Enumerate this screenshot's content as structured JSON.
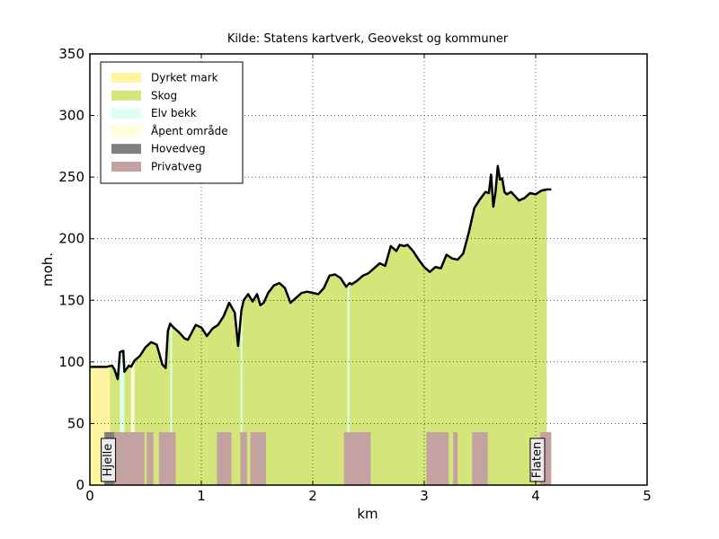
{
  "chart_data": {
    "type": "area",
    "title": "Kilde: Statens kartverk, Geovekst og kommuner",
    "xlabel": "km",
    "ylabel": "moh.",
    "xlim": [
      0,
      5
    ],
    "ylim": [
      0,
      350
    ],
    "xticks": [
      "0",
      "1",
      "2",
      "3",
      "4",
      "5"
    ],
    "yticks": [
      "0",
      "50",
      "100",
      "150",
      "200",
      "250",
      "300",
      "350"
    ],
    "grid": true,
    "legend_position": "top-left",
    "legend": [
      {
        "label": "Dyrket mark",
        "color": "#fff5a0"
      },
      {
        "label": "Skog",
        "color": "#d4e57a"
      },
      {
        "label": "Elv bekk",
        "color": "#dcfff0"
      },
      {
        "label": "Åpent område",
        "color": "#ffffd9"
      },
      {
        "label": "Hovedveg",
        "color": "#808080"
      },
      {
        "label": "Privatveg",
        "color": "#c5a2a2"
      }
    ],
    "elevation": {
      "x": [
        0,
        0.15,
        0.2,
        0.22,
        0.25,
        0.27,
        0.3,
        0.31,
        0.35,
        0.37,
        0.4,
        0.45,
        0.5,
        0.55,
        0.6,
        0.65,
        0.68,
        0.7,
        0.72,
        0.75,
        0.8,
        0.85,
        0.88,
        0.95,
        1.0,
        1.05,
        1.1,
        1.15,
        1.2,
        1.25,
        1.3,
        1.33,
        1.36,
        1.38,
        1.42,
        1.46,
        1.5,
        1.53,
        1.56,
        1.6,
        1.65,
        1.7,
        1.75,
        1.8,
        1.85,
        1.9,
        1.95,
        2.0,
        2.05,
        2.1,
        2.15,
        2.2,
        2.25,
        2.3,
        2.33,
        2.35,
        2.4,
        2.45,
        2.5,
        2.55,
        2.6,
        2.65,
        2.7,
        2.75,
        2.78,
        2.82,
        2.85,
        2.9,
        2.95,
        3.0,
        3.05,
        3.1,
        3.15,
        3.2,
        3.25,
        3.3,
        3.35,
        3.4,
        3.45,
        3.5,
        3.55,
        3.58,
        3.6,
        3.62,
        3.64,
        3.66,
        3.68,
        3.7,
        3.72,
        3.74,
        3.76,
        3.78,
        3.8,
        3.85,
        3.9,
        3.95,
        4.0,
        4.05,
        4.1,
        4.14
      ],
      "y": [
        96,
        96,
        97,
        94,
        86,
        108,
        109,
        92,
        97,
        96,
        101,
        105,
        112,
        116,
        114,
        98,
        95,
        125,
        131,
        128,
        124,
        119,
        118,
        130,
        128,
        121,
        127,
        130,
        137,
        148,
        140,
        113,
        142,
        150,
        155,
        149,
        155,
        146,
        148,
        156,
        162,
        164,
        160,
        148,
        152,
        156,
        157,
        156,
        155,
        160,
        170,
        171,
        168,
        161,
        164,
        163,
        166,
        170,
        172,
        176,
        180,
        178,
        194,
        190,
        195,
        194,
        195,
        190,
        183,
        177,
        173,
        177,
        176,
        187,
        184,
        183,
        188,
        205,
        225,
        232,
        238,
        237,
        252,
        226,
        238,
        259,
        248,
        249,
        238,
        236,
        237,
        238,
        236,
        231,
        233,
        237,
        236,
        239,
        240,
        240
      ]
    },
    "land_cover": [
      {
        "class": "Dyrket mark",
        "from": 0,
        "to": 0.18
      },
      {
        "class": "Skog",
        "from": 0.18,
        "to": 0.27
      },
      {
        "class": "Elv bekk",
        "from": 0.27,
        "to": 0.31
      },
      {
        "class": "Skog",
        "from": 0.31,
        "to": 0.37
      },
      {
        "class": "Åpent område",
        "from": 0.37,
        "to": 0.4
      },
      {
        "class": "Skog",
        "from": 0.4,
        "to": 4.1
      }
    ],
    "streams_km": [
      0.73,
      1.36,
      2.32
    ],
    "roads": [
      {
        "class": "Hovedveg",
        "from": 0.13,
        "to": 0.22
      },
      {
        "class": "Privatveg",
        "from": 0.22,
        "to": 0.49
      },
      {
        "class": "Privatveg",
        "from": 0.51,
        "to": 0.57
      },
      {
        "class": "Privatveg",
        "from": 0.62,
        "to": 0.77
      },
      {
        "class": "Privatveg",
        "from": 1.14,
        "to": 1.27
      },
      {
        "class": "Privatveg",
        "from": 1.35,
        "to": 1.41
      },
      {
        "class": "Privatveg",
        "from": 1.44,
        "to": 1.58
      },
      {
        "class": "Privatveg",
        "from": 2.28,
        "to": 2.52
      },
      {
        "class": "Privatveg",
        "from": 3.02,
        "to": 3.22
      },
      {
        "class": "Privatveg",
        "from": 3.26,
        "to": 3.3
      },
      {
        "class": "Privatveg",
        "from": 3.43,
        "to": 3.57
      },
      {
        "class": "Privatveg",
        "from": 4.04,
        "to": 4.14
      }
    ],
    "road_band_top": 43,
    "places": [
      {
        "name": "Hjelle",
        "x": 0.15
      },
      {
        "name": "Flaten",
        "x": 4.0
      }
    ]
  }
}
